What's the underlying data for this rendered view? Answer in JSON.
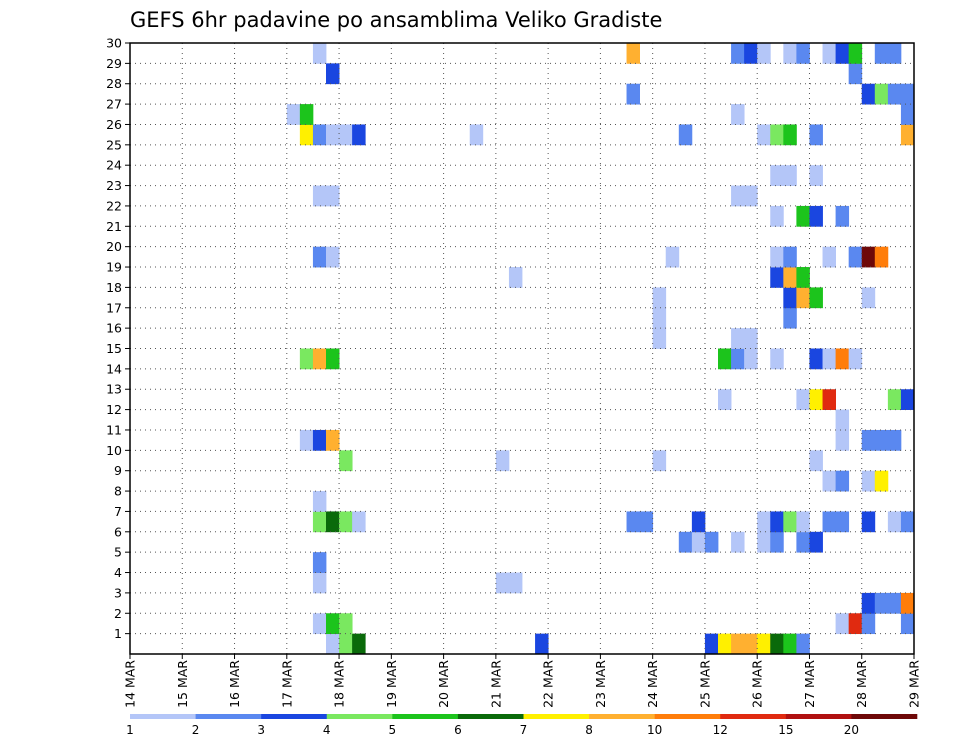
{
  "chart_data": {
    "type": "heatmap",
    "title": "GEFS 6hr padavine po ansamblima Veliko Gradiste",
    "x_labels": [
      "14 MAR",
      "15 MAR",
      "16 MAR",
      "17 MAR",
      "18 MAR",
      "19 MAR",
      "20 MAR",
      "21 MAR",
      "22 MAR",
      "23 MAR",
      "24 MAR",
      "25 MAR",
      "26 MAR",
      "27 MAR",
      "28 MAR",
      "29 MAR"
    ],
    "y_labels": [
      "1",
      "2",
      "3",
      "4",
      "5",
      "6",
      "7",
      "8",
      "9",
      "10",
      "11",
      "12",
      "13",
      "14",
      "15",
      "16",
      "17",
      "18",
      "19",
      "20",
      "21",
      "22",
      "23",
      "24",
      "25",
      "26",
      "27",
      "28",
      "29",
      "30"
    ],
    "time_steps_per_day": 4,
    "num_time_steps": 60,
    "num_members": 30,
    "levels": [
      "1",
      "2",
      "3",
      "4",
      "5",
      "6",
      "7",
      "8",
      "10",
      "12",
      "15",
      "20"
    ],
    "level_colors": [
      "#b4c6f8",
      "#5a88f0",
      "#1a46e0",
      "#7ae860",
      "#1cc41c",
      "#0a6a0a",
      "#fff000",
      "#ffb030",
      "#ff7d0a",
      "#e02a10",
      "#b01010",
      "#6e0808"
    ],
    "cells": [
      [
        0,
        15,
        1
      ],
      [
        0,
        16,
        4
      ],
      [
        0,
        17,
        6
      ],
      [
        0,
        31,
        3
      ],
      [
        0,
        44,
        3
      ],
      [
        0,
        45,
        7
      ],
      [
        0,
        46,
        8
      ],
      [
        0,
        47,
        8
      ],
      [
        0,
        48,
        7
      ],
      [
        0,
        49,
        6
      ],
      [
        0,
        50,
        5
      ],
      [
        0,
        51,
        2
      ],
      [
        1,
        14,
        1
      ],
      [
        1,
        15,
        5
      ],
      [
        1,
        16,
        4
      ],
      [
        1,
        54,
        1
      ],
      [
        1,
        55,
        10
      ],
      [
        1,
        56,
        2
      ],
      [
        1,
        59,
        2
      ],
      [
        2,
        56,
        3
      ],
      [
        2,
        57,
        2
      ],
      [
        2,
        58,
        2
      ],
      [
        2,
        59,
        9
      ],
      [
        3,
        14,
        1
      ],
      [
        3,
        28,
        1
      ],
      [
        3,
        29,
        1
      ],
      [
        4,
        14,
        2
      ],
      [
        5,
        42,
        2
      ],
      [
        5,
        43,
        1
      ],
      [
        5,
        44,
        2
      ],
      [
        5,
        46,
        1
      ],
      [
        5,
        48,
        1
      ],
      [
        5,
        49,
        2
      ],
      [
        5,
        51,
        2
      ],
      [
        5,
        52,
        3
      ],
      [
        6,
        14,
        4
      ],
      [
        6,
        15,
        6
      ],
      [
        6,
        16,
        4
      ],
      [
        6,
        17,
        1
      ],
      [
        6,
        38,
        2
      ],
      [
        6,
        39,
        2
      ],
      [
        6,
        43,
        3
      ],
      [
        6,
        48,
        1
      ],
      [
        6,
        49,
        3
      ],
      [
        6,
        50,
        4
      ],
      [
        6,
        51,
        1
      ],
      [
        6,
        53,
        2
      ],
      [
        6,
        54,
        2
      ],
      [
        6,
        56,
        3
      ],
      [
        6,
        58,
        1
      ],
      [
        6,
        59,
        2
      ],
      [
        7,
        14,
        1
      ],
      [
        8,
        53,
        1
      ],
      [
        8,
        54,
        2
      ],
      [
        8,
        56,
        1
      ],
      [
        8,
        57,
        7
      ],
      [
        9,
        16,
        4
      ],
      [
        9,
        28,
        1
      ],
      [
        9,
        40,
        1
      ],
      [
        9,
        52,
        1
      ],
      [
        10,
        13,
        1
      ],
      [
        10,
        14,
        3
      ],
      [
        10,
        15,
        8
      ],
      [
        10,
        54,
        1
      ],
      [
        10,
        56,
        2
      ],
      [
        10,
        57,
        2
      ],
      [
        10,
        58,
        2
      ],
      [
        11,
        54,
        1
      ],
      [
        12,
        45,
        1
      ],
      [
        12,
        51,
        1
      ],
      [
        12,
        52,
        7
      ],
      [
        12,
        53,
        10
      ],
      [
        12,
        58,
        4
      ],
      [
        12,
        59,
        3
      ],
      [
        14,
        13,
        4
      ],
      [
        14,
        14,
        8
      ],
      [
        14,
        15,
        5
      ],
      [
        14,
        45,
        5
      ],
      [
        14,
        46,
        2
      ],
      [
        14,
        47,
        1
      ],
      [
        14,
        49,
        1
      ],
      [
        14,
        52,
        3
      ],
      [
        14,
        53,
        1
      ],
      [
        14,
        54,
        9
      ],
      [
        14,
        55,
        1
      ],
      [
        15,
        40,
        1
      ],
      [
        15,
        46,
        1
      ],
      [
        15,
        47,
        1
      ],
      [
        16,
        40,
        1
      ],
      [
        16,
        50,
        2
      ],
      [
        17,
        40,
        1
      ],
      [
        17,
        50,
        3
      ],
      [
        17,
        51,
        8
      ],
      [
        17,
        52,
        5
      ],
      [
        17,
        56,
        1
      ],
      [
        18,
        29,
        1
      ],
      [
        18,
        49,
        3
      ],
      [
        18,
        50,
        8
      ],
      [
        18,
        51,
        5
      ],
      [
        19,
        14,
        2
      ],
      [
        19,
        15,
        1
      ],
      [
        19,
        41,
        1
      ],
      [
        19,
        49,
        1
      ],
      [
        19,
        50,
        2
      ],
      [
        19,
        53,
        1
      ],
      [
        19,
        55,
        2
      ],
      [
        19,
        56,
        12
      ],
      [
        19,
        57,
        9
      ],
      [
        21,
        49,
        1
      ],
      [
        21,
        51,
        5
      ],
      [
        21,
        52,
        3
      ],
      [
        21,
        54,
        2
      ],
      [
        22,
        14,
        1
      ],
      [
        22,
        15,
        1
      ],
      [
        22,
        46,
        1
      ],
      [
        22,
        47,
        1
      ],
      [
        23,
        49,
        1
      ],
      [
        23,
        50,
        1
      ],
      [
        23,
        52,
        1
      ],
      [
        25,
        13,
        7
      ],
      [
        25,
        14,
        2
      ],
      [
        25,
        15,
        1
      ],
      [
        25,
        16,
        1
      ],
      [
        25,
        17,
        3
      ],
      [
        25,
        26,
        1
      ],
      [
        25,
        42,
        2
      ],
      [
        25,
        48,
        1
      ],
      [
        25,
        49,
        4
      ],
      [
        25,
        50,
        5
      ],
      [
        25,
        52,
        2
      ],
      [
        25,
        59,
        8
      ],
      [
        26,
        12,
        1
      ],
      [
        26,
        13,
        5
      ],
      [
        26,
        46,
        1
      ],
      [
        26,
        59,
        2
      ],
      [
        27,
        38,
        2
      ],
      [
        27,
        56,
        3
      ],
      [
        27,
        57,
        4
      ],
      [
        27,
        58,
        2
      ],
      [
        27,
        59,
        2
      ],
      [
        28,
        15,
        3
      ],
      [
        28,
        55,
        2
      ],
      [
        29,
        14,
        1
      ],
      [
        29,
        38,
        8
      ],
      [
        29,
        46,
        2
      ],
      [
        29,
        47,
        3
      ],
      [
        29,
        48,
        1
      ],
      [
        29,
        50,
        1
      ],
      [
        29,
        51,
        2
      ],
      [
        29,
        53,
        1
      ],
      [
        29,
        54,
        3
      ],
      [
        29,
        55,
        5
      ],
      [
        29,
        57,
        2
      ],
      [
        29,
        58,
        2
      ]
    ]
  }
}
